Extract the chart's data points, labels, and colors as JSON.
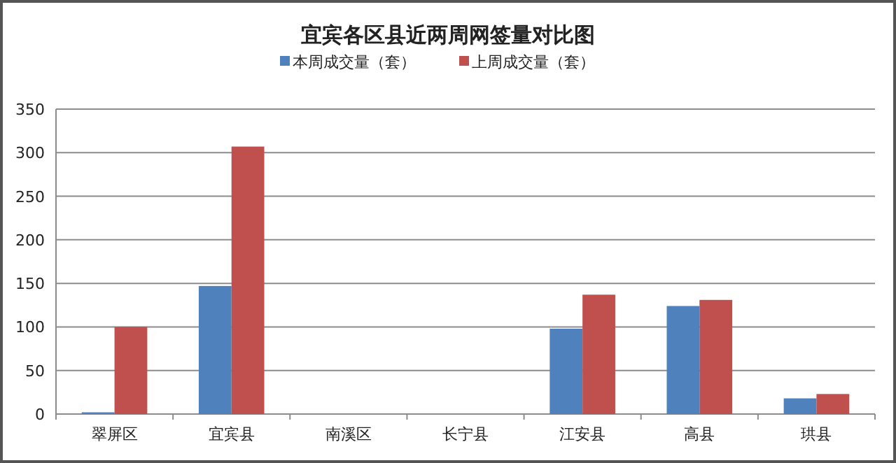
{
  "chart_data": {
    "type": "bar",
    "title": "宜宾各区县近两周网签量对比图",
    "categories": [
      "翠屏区",
      "宜宾县",
      "南溪区",
      "长宁县",
      "江安县",
      "高县",
      "珙县"
    ],
    "series": [
      {
        "name": "本周成交量（套）",
        "color": "#4f81bd",
        "values": [
          2,
          147,
          0,
          0,
          98,
          124,
          18
        ]
      },
      {
        "name": "上周成交量（套）",
        "color": "#c0504d",
        "values": [
          100,
          307,
          0,
          0,
          137,
          131,
          23
        ]
      }
    ],
    "ylim": [
      0,
      350
    ],
    "yticks": [
      0,
      50,
      100,
      150,
      200,
      250,
      300,
      350
    ],
    "grid": "y",
    "legend": "top"
  }
}
